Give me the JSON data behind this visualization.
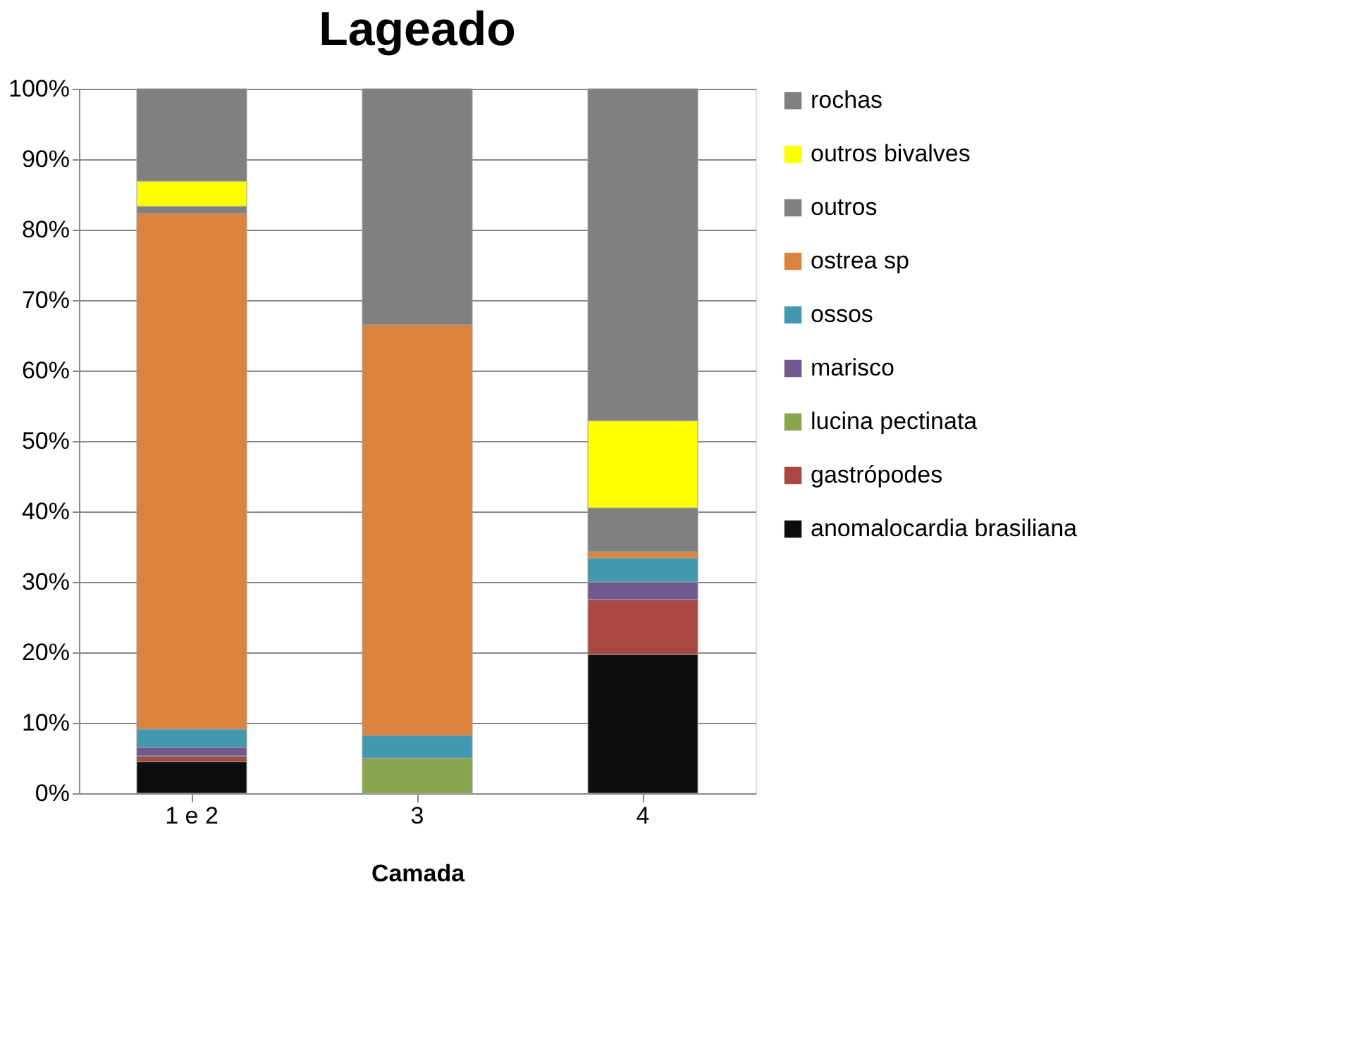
{
  "chart_data": {
    "type": "bar",
    "title": "Lageado",
    "xlabel": "Camada",
    "categories": [
      "1 e 2",
      "3",
      "4"
    ],
    "stacked": true,
    "ylim": [
      0,
      100
    ],
    "yticks": [
      {
        "value": 0,
        "label": "0%"
      },
      {
        "value": 10,
        "label": "10%"
      },
      {
        "value": 20,
        "label": "20%"
      },
      {
        "value": 30,
        "label": "30%"
      },
      {
        "value": 40,
        "label": "40%"
      },
      {
        "value": 50,
        "label": "50%"
      },
      {
        "value": 60,
        "label": "60%"
      },
      {
        "value": 70,
        "label": "70%"
      },
      {
        "value": 80,
        "label": "80%"
      },
      {
        "value": 90,
        "label": "90%"
      },
      {
        "value": 100,
        "label": "100%"
      }
    ],
    "grid": "y",
    "legend": "right",
    "series": [
      {
        "name": "anomalocardia brasiliana",
        "color": "#0d0d0d",
        "values": [
          4.5,
          0,
          19.7
        ]
      },
      {
        "name": "gastrópodes",
        "color": "#aa4643",
        "values": [
          0.8,
          0,
          7.8
        ]
      },
      {
        "name": "lucina pectinata",
        "color": "#89a54e",
        "values": [
          0,
          5.0,
          0
        ]
      },
      {
        "name": "marisco",
        "color": "#71588f",
        "values": [
          1.2,
          0,
          2.5
        ]
      },
      {
        "name": "ossos",
        "color": "#4198af",
        "values": [
          2.6,
          3.2,
          3.4
        ]
      },
      {
        "name": "ostrea sp",
        "color": "#db843d",
        "values": [
          73.2,
          58.3,
          0.9
        ]
      },
      {
        "name": "outros",
        "color": "#808080",
        "values": [
          1.0,
          0,
          6.2
        ]
      },
      {
        "name": "outros bivalves",
        "color": "#ffff00",
        "values": [
          3.6,
          0,
          12.4
        ]
      },
      {
        "name": "rochas",
        "color": "#808080",
        "values": [
          13.1,
          33.5,
          47.1
        ]
      }
    ]
  }
}
